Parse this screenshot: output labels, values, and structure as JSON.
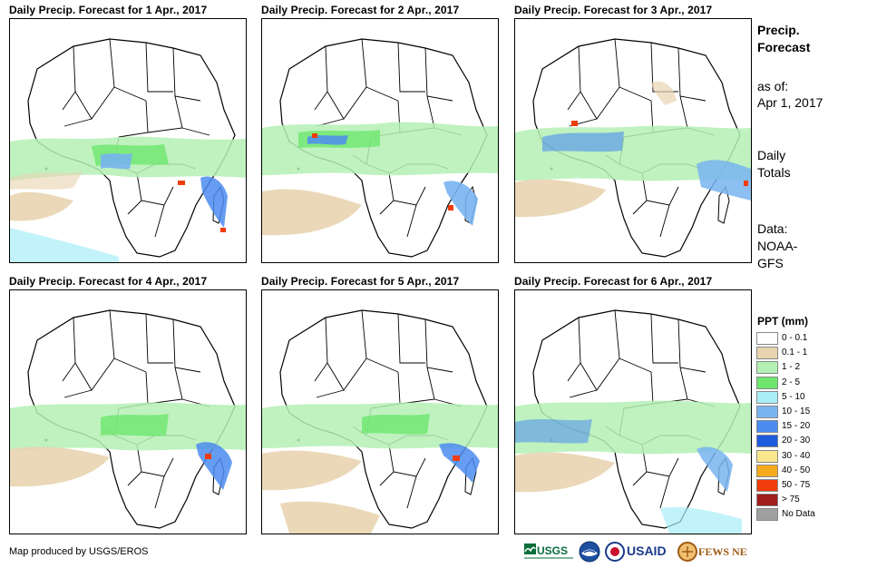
{
  "panels": [
    {
      "title": "Daily Precip. Forecast for 1 Apr., 2017"
    },
    {
      "title": "Daily Precip. Forecast for 2 Apr., 2017"
    },
    {
      "title": "Daily Precip. Forecast for 3 Apr., 2017"
    },
    {
      "title": "Daily Precip. Forecast for 4 Apr., 2017"
    },
    {
      "title": "Daily Precip. Forecast for 5 Apr., 2017"
    },
    {
      "title": "Daily Precip. Forecast for 6 Apr., 2017"
    }
  ],
  "sidebar": {
    "title_line1": "Precip.",
    "title_line2": "Forecast",
    "asof_label": "as of:",
    "asof_date": "Apr 1, 2017",
    "totals_line1": "Daily",
    "totals_line2": "Totals",
    "data_line1": "Data:",
    "data_line2": "NOAA-",
    "data_line3": "GFS"
  },
  "legend": {
    "title": "PPT (mm)",
    "items": [
      {
        "label": "0 - 0.1",
        "color": "#ffffff"
      },
      {
        "label": "0.1 - 1",
        "color": "#e8d4b0"
      },
      {
        "label": "1 - 2",
        "color": "#b4f0b4"
      },
      {
        "label": "2 - 5",
        "color": "#6ee66e"
      },
      {
        "label": "5 - 10",
        "color": "#aaeef8"
      },
      {
        "label": "10 - 15",
        "color": "#78b4f0"
      },
      {
        "label": "15 - 20",
        "color": "#4b8cf0"
      },
      {
        "label": "20 - 30",
        "color": "#1e5adc"
      },
      {
        "label": "30 - 40",
        "color": "#fae68c"
      },
      {
        "label": "40 - 50",
        "color": "#f5aa1e"
      },
      {
        "label": "50 - 75",
        "color": "#f03c0a"
      },
      {
        "label": "> 75",
        "color": "#a01e1e"
      },
      {
        "label": "No Data",
        "color": "#a0a0a0"
      }
    ]
  },
  "footer": {
    "credit": "Map produced by USGS/EROS",
    "logo_usgs": "USGS",
    "logo_usaid": "USAID",
    "logo_fewsnet": "FEWS NET"
  }
}
